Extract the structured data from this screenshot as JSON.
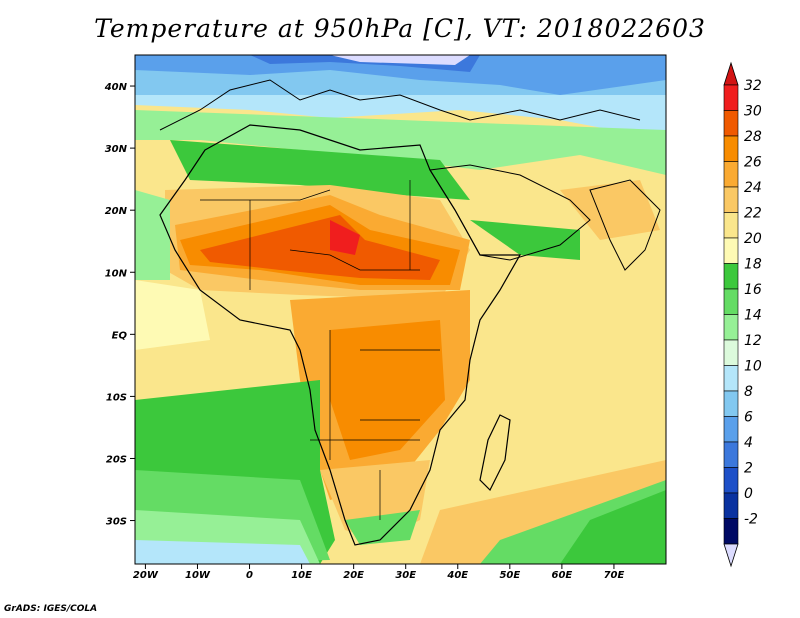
{
  "title": "Temperature at 950hPa [C], VT: 2018022603",
  "credit": "GrADS: IGES/COLA",
  "map": {
    "lon_range": [
      -22,
      80
    ],
    "lat_range": [
      -37,
      45
    ],
    "lon_ticks": [
      "20W",
      "10W",
      "0",
      "10E",
      "20E",
      "30E",
      "40E",
      "50E",
      "60E",
      "70E"
    ],
    "lat_ticks": [
      "40N",
      "30N",
      "20N",
      "10N",
      "EQ",
      "10S",
      "20S",
      "30S"
    ]
  },
  "colorbar": {
    "labels": [
      "32",
      "30",
      "28",
      "26",
      "24",
      "22",
      "20",
      "18",
      "16",
      "14",
      "12",
      "10",
      "8",
      "6",
      "4",
      "2",
      "0",
      "-2"
    ],
    "colors": [
      "#f01e1e",
      "#f05a00",
      "#f88c00",
      "#faaa32",
      "#fac864",
      "#fae68c",
      "#fefab4",
      "#3cc83c",
      "#64dc64",
      "#96f096",
      "#dcfadc",
      "#b4e6fa",
      "#82c8f0",
      "#5aa0eb",
      "#3c78dc",
      "#1e50c8",
      "#0a32a0",
      "#000a64"
    ],
    "top_arrow_color": "#d21414",
    "bottom_arrow_color": "#dcdcff"
  }
}
